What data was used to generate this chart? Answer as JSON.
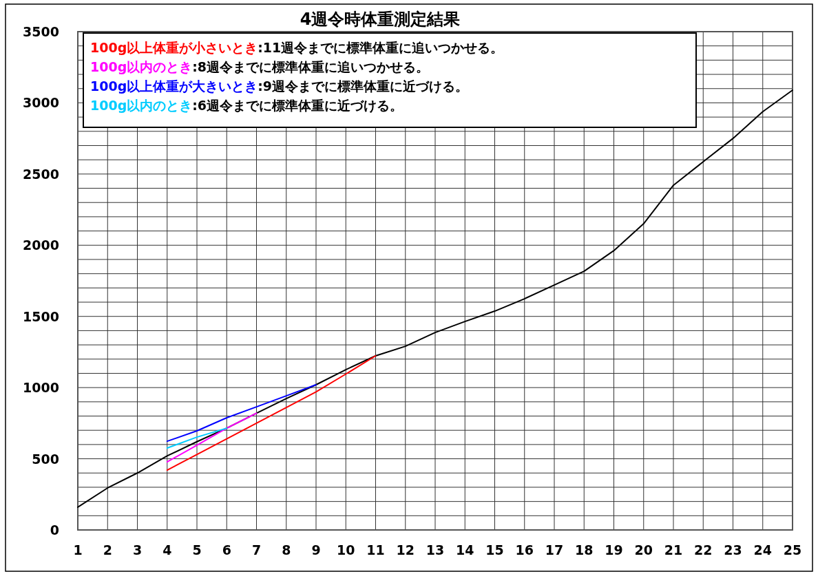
{
  "chart_data": {
    "type": "line",
    "title": "4週令時体重測定結果",
    "x": [
      1,
      2,
      3,
      4,
      5,
      6,
      7,
      8,
      9,
      10,
      11,
      12,
      13,
      14,
      15,
      16,
      17,
      18,
      19,
      20,
      21,
      22,
      23,
      24,
      25
    ],
    "series": [
      {
        "color": "#000000",
        "values": [
          160,
          295,
          400,
          520,
          620,
          715,
          820,
          923,
          1020,
          1126,
          1223,
          1290,
          1387,
          1464,
          1537,
          1624,
          1720,
          1817,
          1962,
          2151,
          2421,
          2586,
          2750,
          2938,
          3089
        ]
      },
      {
        "name": "100g以上体重が小さいとき",
        "color": "#ff0000",
        "x": [
          4,
          5,
          6,
          7,
          8,
          9,
          10,
          11
        ],
        "values": [
          420,
          530,
          640,
          750,
          860,
          970,
          1095,
          1223
        ]
      },
      {
        "name": "100g以内のとき",
        "color": "#ff00ff",
        "x": [
          4,
          5,
          6,
          7
        ],
        "values": [
          478,
          595,
          715,
          820
        ]
      },
      {
        "name": "100g以上体重が大きいとき",
        "color": "#0000ff",
        "x": [
          4,
          5,
          6,
          7,
          8,
          9
        ],
        "values": [
          623,
          696,
          788,
          865,
          942,
          1020
        ]
      },
      {
        "name": "100g以内のとき",
        "color": "#00ccff",
        "x": [
          4,
          5,
          6
        ],
        "values": [
          575,
          652,
          715
        ]
      }
    ],
    "annotations": [
      ":11週令までに標準体重に追いつかせる。",
      ":8週令までに標準体重に追いつかせる。",
      ":9週令までに標準体重に近づける。",
      ":6週令までに標準体重に近づける。"
    ],
    "xlim": [
      1,
      25
    ],
    "xticks": [
      1,
      2,
      3,
      4,
      5,
      6,
      7,
      8,
      9,
      10,
      11,
      12,
      13,
      14,
      15,
      16,
      17,
      18,
      19,
      20,
      21,
      22,
      23,
      24,
      25
    ],
    "ylim": [
      0,
      3500
    ],
    "yticks": [
      0,
      {
        "value": 100,
        "label": null
      },
      {
        "value": 200,
        "label": null
      },
      {
        "value": 300,
        "label": null
      },
      {
        "value": 400,
        "label": null
      },
      500,
      {
        "value": 600,
        "label": null
      },
      {
        "value": 700,
        "label": null
      },
      {
        "value": 800,
        "label": null
      },
      {
        "value": 900,
        "label": null
      },
      1000,
      {
        "value": 1100,
        "label": null
      },
      {
        "value": 1200,
        "label": null
      },
      {
        "value": 1300,
        "label": null
      },
      {
        "value": 1400,
        "label": null
      },
      1500,
      {
        "value": 1600,
        "label": null
      },
      {
        "value": 1700,
        "label": null
      },
      {
        "value": 1800,
        "label": null
      },
      {
        "value": 1900,
        "label": null
      },
      2000,
      {
        "value": 2100,
        "label": null
      },
      {
        "value": 2200,
        "label": null
      },
      {
        "value": 2300,
        "label": null
      },
      {
        "value": 2400,
        "label": null
      },
      2500,
      {
        "value": 2600,
        "label": null
      },
      {
        "value": 2700,
        "label": null
      },
      {
        "value": 2800,
        "label": null
      },
      {
        "value": 2900,
        "label": null
      },
      3000,
      {
        "value": 3100,
        "label": null
      },
      {
        "value": 3200,
        "label": null
      },
      {
        "value": 3300,
        "label": null
      },
      {
        "value": 3400,
        "label": null
      },
      3500
    ],
    "grid": true,
    "legend": "top left",
    "marker": "none",
    "line_style": "solid"
  }
}
